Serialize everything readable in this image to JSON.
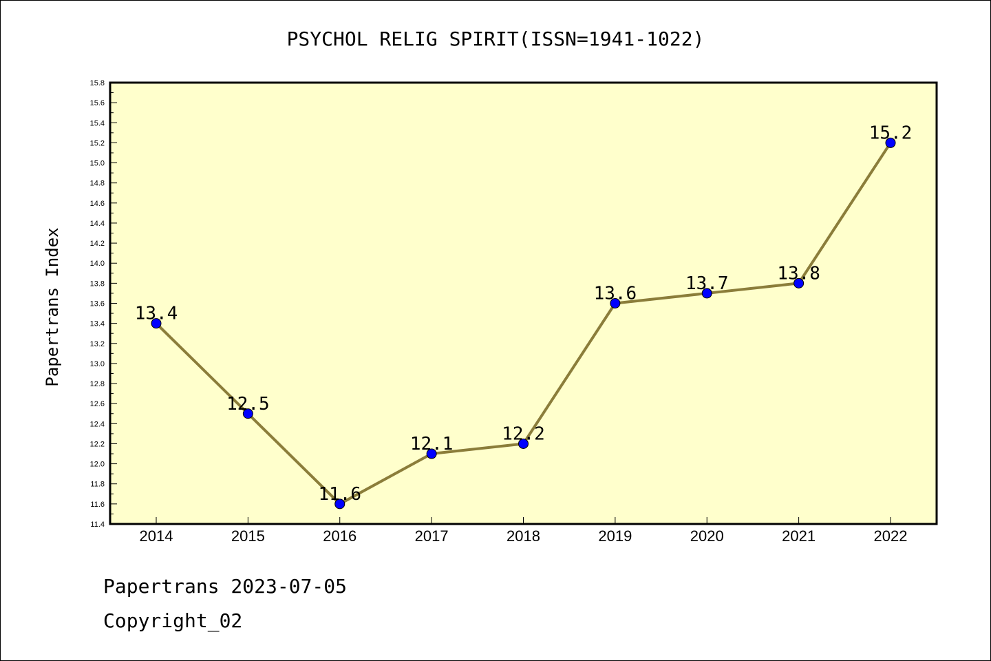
{
  "chart_data": {
    "type": "line",
    "title": "PSYCHOL RELIG SPIRIT(ISSN=1941-1022)",
    "xlabel": "",
    "ylabel": "Papertrans Index",
    "categories": [
      "2014",
      "2015",
      "2016",
      "2017",
      "2018",
      "2019",
      "2020",
      "2021",
      "2022"
    ],
    "values": [
      13.4,
      12.5,
      11.6,
      12.1,
      12.2,
      13.6,
      13.7,
      13.8,
      15.2
    ],
    "value_labels": [
      "13.4",
      "12.5",
      "11.6",
      "12.1",
      "12.2",
      "13.6",
      "13.7",
      "13.8",
      "15.2"
    ],
    "ylim": [
      11.4,
      15.8
    ],
    "yticks": [
      "11.4",
      "11.6",
      "11.8",
      "12.0",
      "12.2",
      "12.4",
      "12.6",
      "12.8",
      "13.0",
      "13.2",
      "13.4",
      "13.6",
      "13.8",
      "14.0",
      "14.2",
      "14.4",
      "14.6",
      "14.8",
      "15.0",
      "15.2",
      "15.4",
      "15.6",
      "15.8"
    ],
    "grid": false,
    "colors": {
      "plot_background": "#ffffcc",
      "line": "#8b7d3a",
      "marker": "#0000ff"
    }
  },
  "footer": {
    "line1": "Papertrans 2023-07-05",
    "line2": "Copyright_02"
  }
}
